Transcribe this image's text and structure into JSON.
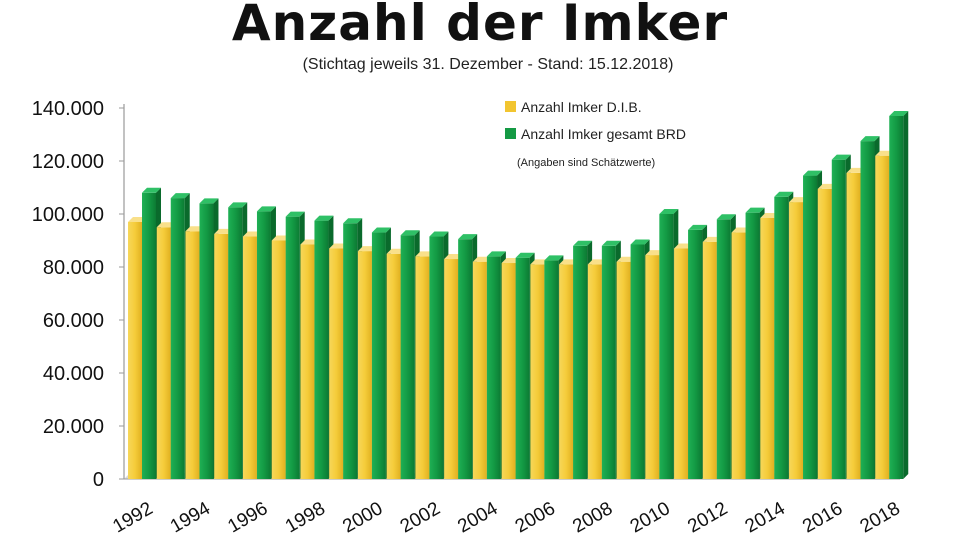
{
  "chart_data": {
    "type": "bar",
    "title": "Anzahl der Imker",
    "subtitle": "(Stichtag jeweils 31. Dezember - Stand: 15.12.2018)",
    "xlabel": "",
    "ylabel": "",
    "ylim": [
      0,
      140000
    ],
    "yticks": [
      "0",
      "20.000",
      "40.000",
      "60.000",
      "80.000",
      "100.000",
      "120.000",
      "140.000"
    ],
    "grid": false,
    "legend_position": "top-right",
    "note": "(Angaben sind Schätzwerte)",
    "categories": [
      "1992",
      "1993",
      "1994",
      "1995",
      "1996",
      "1997",
      "1998",
      "1999",
      "2000",
      "2001",
      "2002",
      "2003",
      "2004",
      "2005",
      "2006",
      "2007",
      "2008",
      "2009",
      "2010",
      "2011",
      "2012",
      "2013",
      "2014",
      "2015",
      "2016",
      "2017",
      "2018"
    ],
    "category_labels": [
      "1992",
      "",
      "1994",
      "",
      "1996",
      "",
      "1998",
      "",
      "2000",
      "",
      "2002",
      "",
      "2004",
      "",
      "2006",
      "",
      "2008",
      "",
      "2010",
      "",
      "2012",
      "",
      "2014",
      "",
      "2016",
      "",
      "2018"
    ],
    "series": [
      {
        "name": "Anzahl Imker D.I.B.",
        "color": "#f2c530",
        "values": [
          97000,
          95000,
          93500,
          92500,
          91500,
          90000,
          88500,
          87000,
          86000,
          85000,
          84000,
          83000,
          82000,
          81500,
          81000,
          81000,
          81000,
          82000,
          84500,
          87000,
          89500,
          93000,
          98500,
          104500,
          109500,
          115500,
          122000
        ]
      },
      {
        "name": "Anzahl Imker gesamt BRD",
        "color": "#149a44",
        "values": [
          108000,
          106000,
          104000,
          102500,
          101000,
          99000,
          97500,
          96500,
          93000,
          92000,
          91500,
          90500,
          84000,
          83500,
          82500,
          88000,
          88000,
          88500,
          100000,
          94000,
          98000,
          100500,
          106500,
          114500,
          120500,
          127500,
          137000
        ]
      }
    ]
  }
}
